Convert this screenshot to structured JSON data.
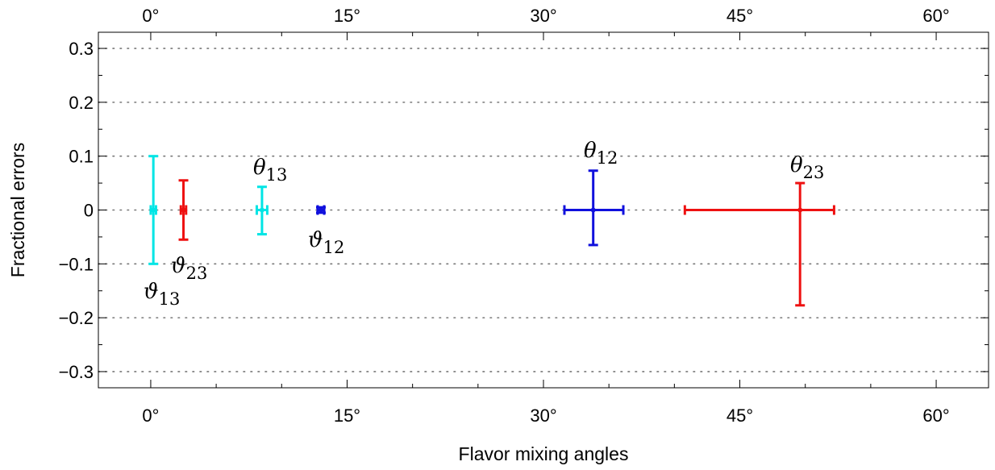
{
  "chart_data": {
    "type": "scatter",
    "xlabel": "Flavor mixing angles",
    "ylabel": "Fractional errors",
    "xlim": [
      -4,
      64
    ],
    "ylim": [
      -0.33,
      0.33
    ],
    "x_ticks": [
      0,
      15,
      30,
      45,
      60
    ],
    "x_tick_labels": [
      "0°",
      "15°",
      "30°",
      "45°",
      "60°"
    ],
    "y_ticks": [
      0.3,
      0.2,
      0.1,
      0,
      -0.1,
      -0.2,
      -0.3
    ],
    "y_tick_labels": [
      "0.3",
      "0.2",
      "0.1",
      "0",
      "−0.1",
      "−0.2",
      "−0.3"
    ],
    "grid": "horizontal dotted",
    "points": [
      {
        "id": "vartheta13",
        "label": "ϑ",
        "sub": "13",
        "x": 0.2,
        "y": 0,
        "x_err": [
          0.2,
          0.2
        ],
        "y_err": [
          0.1,
          0.1
        ],
        "color": "#00e5e5"
      },
      {
        "id": "vartheta23",
        "label": "ϑ",
        "sub": "23",
        "x": 2.5,
        "y": 0,
        "x_err": [
          0.2,
          0.2
        ],
        "y_err": [
          0.055,
          0.055
        ],
        "color": "#ee1111"
      },
      {
        "id": "theta13",
        "label": "θ",
        "sub": "13",
        "x": 8.5,
        "y": 0,
        "x_err": [
          0.4,
          0.4
        ],
        "y_err": [
          0.045,
          0.043
        ],
        "color": "#00e5e5"
      },
      {
        "id": "vartheta12",
        "label": "ϑ",
        "sub": "12",
        "x": 13.0,
        "y": 0,
        "x_err": [
          0.25,
          0.25
        ],
        "y_err": [
          0.005,
          0.005
        ],
        "color": "#1010dd"
      },
      {
        "id": "theta12",
        "label": "θ",
        "sub": "12",
        "x": 33.8,
        "y": 0,
        "x_err": [
          2.2,
          2.3
        ],
        "y_err": [
          0.065,
          0.073
        ],
        "color": "#1010dd"
      },
      {
        "id": "theta23",
        "label": "θ",
        "sub": "23",
        "x": 49.6,
        "y": 0,
        "x_err": [
          8.8,
          2.6
        ],
        "y_err": [
          0.177,
          0.05
        ],
        "color": "#ee1111"
      }
    ]
  }
}
